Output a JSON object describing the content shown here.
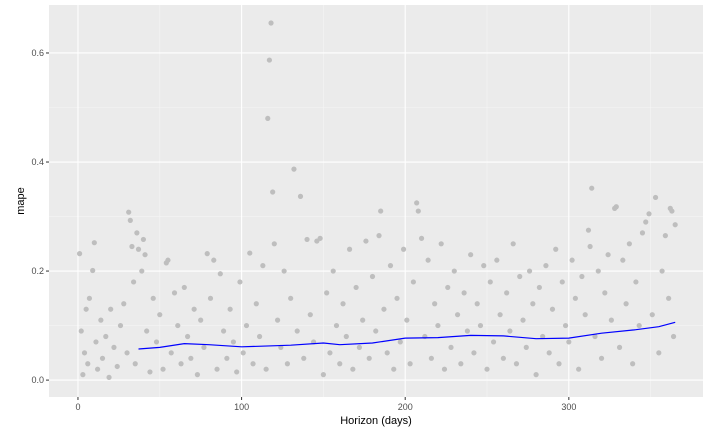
{
  "chart_data": {
    "type": "scatter",
    "title": "",
    "xlabel": "Horizon (days)",
    "ylabel": "mape",
    "xlim": [
      -17.7,
      382
    ],
    "ylim": [
      -0.031,
      0.688
    ],
    "xticks": [
      0,
      100,
      200,
      300
    ],
    "yticks": [
      0.0,
      0.2,
      0.4,
      0.6
    ],
    "xtick_labels": [
      "0",
      "100",
      "200",
      "300"
    ],
    "ytick_labels": [
      "0.0",
      "0.2",
      "0.4",
      "0.6"
    ],
    "grid": true,
    "point_color": "#bebebe",
    "line_color": "#0000ff",
    "panel_color": "#ebebeb",
    "points": [
      [
        1,
        0.232
      ],
      [
        2,
        0.09
      ],
      [
        3,
        0.01
      ],
      [
        4,
        0.05
      ],
      [
        5,
        0.13
      ],
      [
        6,
        0.03
      ],
      [
        7,
        0.15
      ],
      [
        9,
        0.201
      ],
      [
        10,
        0.252
      ],
      [
        11,
        0.07
      ],
      [
        12,
        0.02
      ],
      [
        14,
        0.11
      ],
      [
        15,
        0.04
      ],
      [
        17,
        0.08
      ],
      [
        19,
        0.005
      ],
      [
        20,
        0.13
      ],
      [
        22,
        0.06
      ],
      [
        24,
        0.025
      ],
      [
        26,
        0.1
      ],
      [
        28,
        0.14
      ],
      [
        30,
        0.05
      ],
      [
        31,
        0.308
      ],
      [
        32,
        0.293
      ],
      [
        33,
        0.245
      ],
      [
        34,
        0.18
      ],
      [
        35,
        0.03
      ],
      [
        36,
        0.27
      ],
      [
        37,
        0.24
      ],
      [
        39,
        0.2
      ],
      [
        40,
        0.258
      ],
      [
        41,
        0.23
      ],
      [
        42,
        0.09
      ],
      [
        44,
        0.015
      ],
      [
        46,
        0.15
      ],
      [
        48,
        0.07
      ],
      [
        50,
        0.12
      ],
      [
        52,
        0.02
      ],
      [
        54,
        0.215
      ],
      [
        55,
        0.22
      ],
      [
        57,
        0.05
      ],
      [
        59,
        0.16
      ],
      [
        61,
        0.1
      ],
      [
        63,
        0.03
      ],
      [
        65,
        0.17
      ],
      [
        67,
        0.08
      ],
      [
        69,
        0.04
      ],
      [
        71,
        0.13
      ],
      [
        73,
        0.01
      ],
      [
        75,
        0.11
      ],
      [
        77,
        0.06
      ],
      [
        79,
        0.232
      ],
      [
        81,
        0.15
      ],
      [
        83,
        0.22
      ],
      [
        85,
        0.02
      ],
      [
        87,
        0.195
      ],
      [
        89,
        0.09
      ],
      [
        91,
        0.04
      ],
      [
        93,
        0.13
      ],
      [
        95,
        0.07
      ],
      [
        97,
        0.015
      ],
      [
        99,
        0.18
      ],
      [
        101,
        0.05
      ],
      [
        103,
        0.1
      ],
      [
        105,
        0.233
      ],
      [
        107,
        0.03
      ],
      [
        109,
        0.14
      ],
      [
        111,
        0.08
      ],
      [
        113,
        0.21
      ],
      [
        115,
        0.02
      ],
      [
        116,
        0.48
      ],
      [
        117,
        0.587
      ],
      [
        118,
        0.655
      ],
      [
        119,
        0.345
      ],
      [
        120,
        0.25
      ],
      [
        122,
        0.11
      ],
      [
        124,
        0.06
      ],
      [
        126,
        0.2
      ],
      [
        128,
        0.03
      ],
      [
        130,
        0.15
      ],
      [
        132,
        0.387
      ],
      [
        134,
        0.09
      ],
      [
        136,
        0.337
      ],
      [
        138,
        0.04
      ],
      [
        140,
        0.258
      ],
      [
        142,
        0.12
      ],
      [
        144,
        0.07
      ],
      [
        146,
        0.255
      ],
      [
        148,
        0.26
      ],
      [
        150,
        0.01
      ],
      [
        152,
        0.16
      ],
      [
        154,
        0.05
      ],
      [
        156,
        0.2
      ],
      [
        158,
        0.1
      ],
      [
        160,
        0.03
      ],
      [
        162,
        0.14
      ],
      [
        164,
        0.08
      ],
      [
        166,
        0.24
      ],
      [
        168,
        0.02
      ],
      [
        170,
        0.17
      ],
      [
        172,
        0.06
      ],
      [
        174,
        0.11
      ],
      [
        176,
        0.255
      ],
      [
        178,
        0.04
      ],
      [
        180,
        0.19
      ],
      [
        182,
        0.09
      ],
      [
        184,
        0.265
      ],
      [
        185,
        0.31
      ],
      [
        187,
        0.13
      ],
      [
        189,
        0.05
      ],
      [
        191,
        0.21
      ],
      [
        193,
        0.02
      ],
      [
        195,
        0.15
      ],
      [
        197,
        0.07
      ],
      [
        199,
        0.24
      ],
      [
        201,
        0.11
      ],
      [
        203,
        0.03
      ],
      [
        205,
        0.18
      ],
      [
        207,
        0.325
      ],
      [
        208,
        0.31
      ],
      [
        210,
        0.26
      ],
      [
        212,
        0.08
      ],
      [
        214,
        0.22
      ],
      [
        216,
        0.04
      ],
      [
        218,
        0.14
      ],
      [
        220,
        0.1
      ],
      [
        222,
        0.25
      ],
      [
        224,
        0.02
      ],
      [
        226,
        0.17
      ],
      [
        228,
        0.06
      ],
      [
        230,
        0.2
      ],
      [
        232,
        0.12
      ],
      [
        234,
        0.03
      ],
      [
        236,
        0.16
      ],
      [
        238,
        0.09
      ],
      [
        240,
        0.23
      ],
      [
        242,
        0.05
      ],
      [
        244,
        0.14
      ],
      [
        246,
        0.1
      ],
      [
        248,
        0.21
      ],
      [
        250,
        0.02
      ],
      [
        252,
        0.18
      ],
      [
        254,
        0.07
      ],
      [
        256,
        0.22
      ],
      [
        258,
        0.12
      ],
      [
        260,
        0.04
      ],
      [
        262,
        0.16
      ],
      [
        264,
        0.09
      ],
      [
        266,
        0.25
      ],
      [
        268,
        0.03
      ],
      [
        270,
        0.19
      ],
      [
        272,
        0.11
      ],
      [
        274,
        0.06
      ],
      [
        276,
        0.2
      ],
      [
        278,
        0.14
      ],
      [
        280,
        0.01
      ],
      [
        282,
        0.17
      ],
      [
        284,
        0.08
      ],
      [
        286,
        0.21
      ],
      [
        288,
        0.05
      ],
      [
        290,
        0.13
      ],
      [
        292,
        0.24
      ],
      [
        294,
        0.03
      ],
      [
        296,
        0.18
      ],
      [
        298,
        0.1
      ],
      [
        300,
        0.07
      ],
      [
        302,
        0.22
      ],
      [
        304,
        0.15
      ],
      [
        306,
        0.02
      ],
      [
        308,
        0.19
      ],
      [
        310,
        0.12
      ],
      [
        312,
        0.275
      ],
      [
        313,
        0.245
      ],
      [
        314,
        0.352
      ],
      [
        316,
        0.08
      ],
      [
        318,
        0.2
      ],
      [
        320,
        0.04
      ],
      [
        322,
        0.16
      ],
      [
        324,
        0.23
      ],
      [
        326,
        0.11
      ],
      [
        328,
        0.315
      ],
      [
        329,
        0.318
      ],
      [
        331,
        0.06
      ],
      [
        333,
        0.22
      ],
      [
        335,
        0.14
      ],
      [
        337,
        0.25
      ],
      [
        339,
        0.03
      ],
      [
        341,
        0.18
      ],
      [
        343,
        0.1
      ],
      [
        345,
        0.27
      ],
      [
        347,
        0.29
      ],
      [
        349,
        0.305
      ],
      [
        351,
        0.12
      ],
      [
        353,
        0.335
      ],
      [
        355,
        0.05
      ],
      [
        357,
        0.2
      ],
      [
        359,
        0.265
      ],
      [
        361,
        0.15
      ],
      [
        362,
        0.315
      ],
      [
        363,
        0.31
      ],
      [
        364,
        0.08
      ],
      [
        365,
        0.285
      ]
    ],
    "series": [
      {
        "x": [
          37,
          50,
          65,
          80,
          100,
          110,
          130,
          150,
          160,
          180,
          200,
          220,
          240,
          260,
          280,
          300,
          320,
          340,
          355,
          365
        ],
        "y": [
          0.057,
          0.06,
          0.067,
          0.065,
          0.061,
          0.062,
          0.064,
          0.068,
          0.065,
          0.068,
          0.077,
          0.078,
          0.082,
          0.081,
          0.076,
          0.077,
          0.086,
          0.092,
          0.098,
          0.106
        ]
      }
    ]
  }
}
